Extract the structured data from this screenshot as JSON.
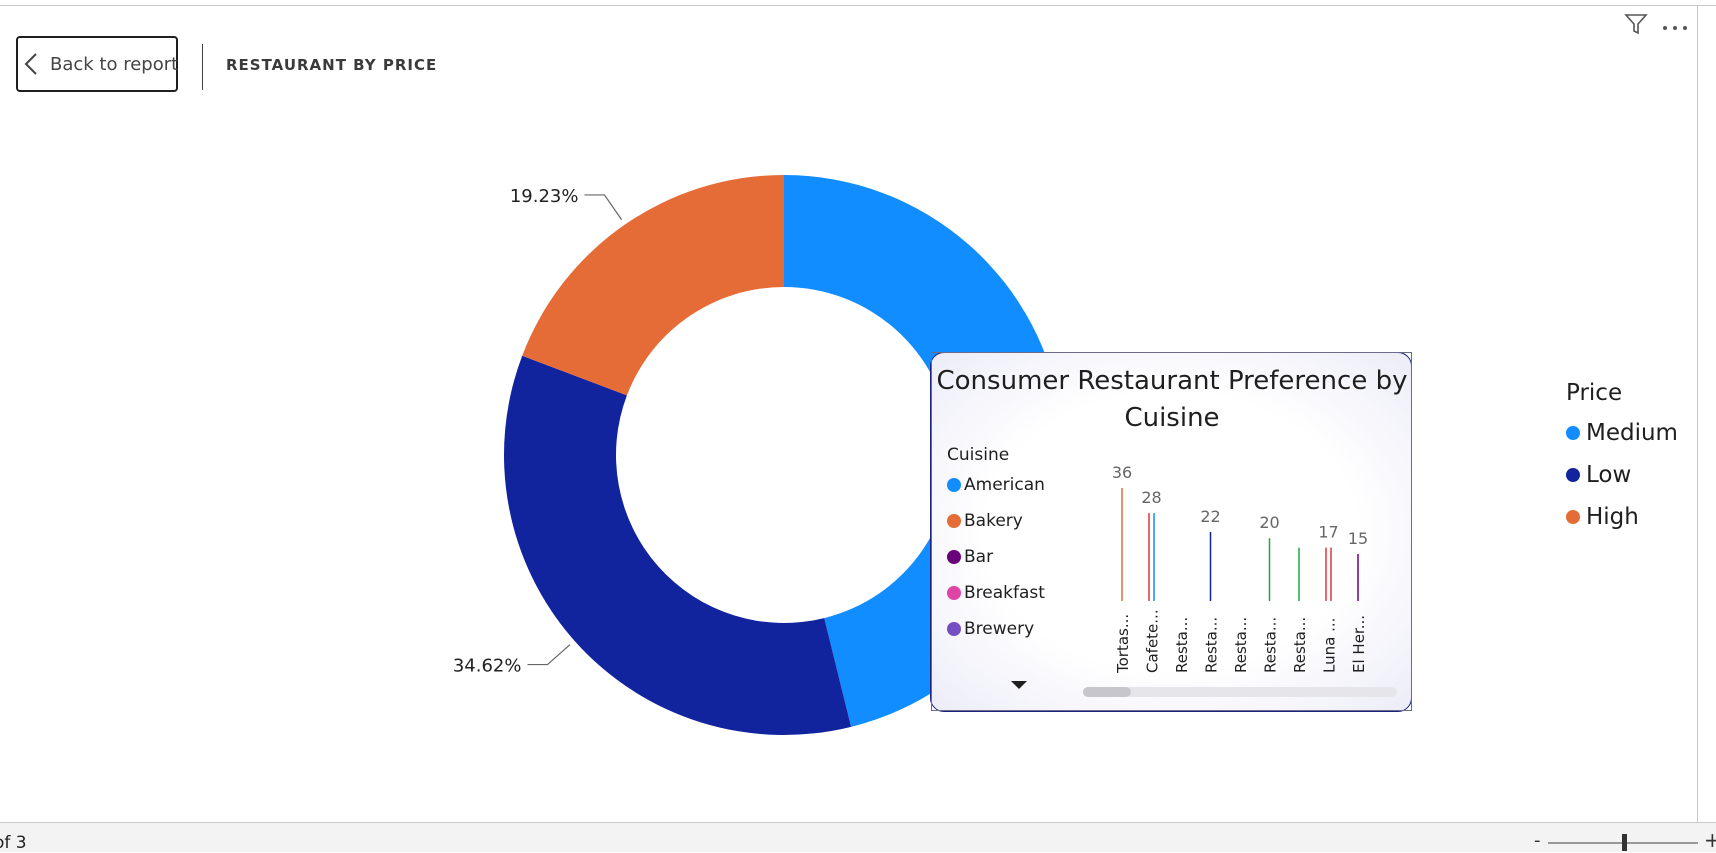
{
  "header": {
    "back_label": "Back to report",
    "page_title": "RESTAURANT BY PRICE"
  },
  "icons": {
    "back": "chevron-left-icon",
    "filter": "filter-icon",
    "more": "more-options-icon",
    "legend_more": "caret-down-icon"
  },
  "chart_data": [
    {
      "type": "pie",
      "variant": "donut",
      "legend_title": "Price",
      "legend_placement": "right",
      "categories": [
        "Medium",
        "Low",
        "High"
      ],
      "values": [
        46.15,
        34.62,
        19.23
      ],
      "colors": [
        "#118dff",
        "#12239e",
        "#e66c37"
      ],
      "data_labels": [
        {
          "category": "Low",
          "text": "34.62%"
        },
        {
          "category": "High",
          "text": "19.23%"
        }
      ]
    },
    {
      "type": "bar",
      "title": "Consumer Restaurant Preference by Cuisine",
      "legend_title": "Cuisine",
      "legend_placement": "left",
      "legend": [
        {
          "name": "American",
          "color": "#118dff"
        },
        {
          "name": "Bakery",
          "color": "#e66c37"
        },
        {
          "name": "Bar",
          "color": "#6b007b"
        },
        {
          "name": "Breakfast",
          "color": "#e044a7"
        },
        {
          "name": "Brewery",
          "color": "#744ec2"
        }
      ],
      "categories": [
        "Tortas...",
        "Cafete...",
        "Resta...",
        "Resta...",
        "Resta...",
        "Resta...",
        "Resta...",
        "Luna ...",
        "El Her..."
      ],
      "bars": [
        {
          "category_index": 0,
          "offset": 0,
          "value": 36,
          "color": "#e66c37"
        },
        {
          "category_index": 1,
          "offset": -1,
          "value": 28,
          "color": "#d9373b"
        },
        {
          "category_index": 1,
          "offset": 1,
          "value": 28,
          "color": "#118dff"
        },
        {
          "category_index": 3,
          "offset": 0,
          "value": 22,
          "color": "#12239e"
        },
        {
          "category_index": 5,
          "offset": 0,
          "value": 20,
          "color": "#1aab40"
        },
        {
          "category_index": 6,
          "offset": 0,
          "value": 17,
          "color": "#1aab40"
        },
        {
          "category_index": 7,
          "offset": -1,
          "value": 17,
          "color": "#d9373b"
        },
        {
          "category_index": 7,
          "offset": 1,
          "value": 17,
          "color": "#d9373b"
        },
        {
          "category_index": 8,
          "offset": 0,
          "value": 15,
          "color": "#6b007b"
        }
      ],
      "value_labels": [
        {
          "category_index": 0,
          "text": "36"
        },
        {
          "category_index": 1,
          "text": "28"
        },
        {
          "category_index": 3,
          "text": "22"
        },
        {
          "category_index": 5,
          "text": "20"
        },
        {
          "category_index": 7,
          "text": "17"
        },
        {
          "category_index": 8,
          "text": "15"
        }
      ],
      "ylim": [
        0,
        36
      ]
    }
  ],
  "footer": {
    "page_indicator": "of 3",
    "zoom_minus": "-",
    "zoom_plus": "+"
  }
}
